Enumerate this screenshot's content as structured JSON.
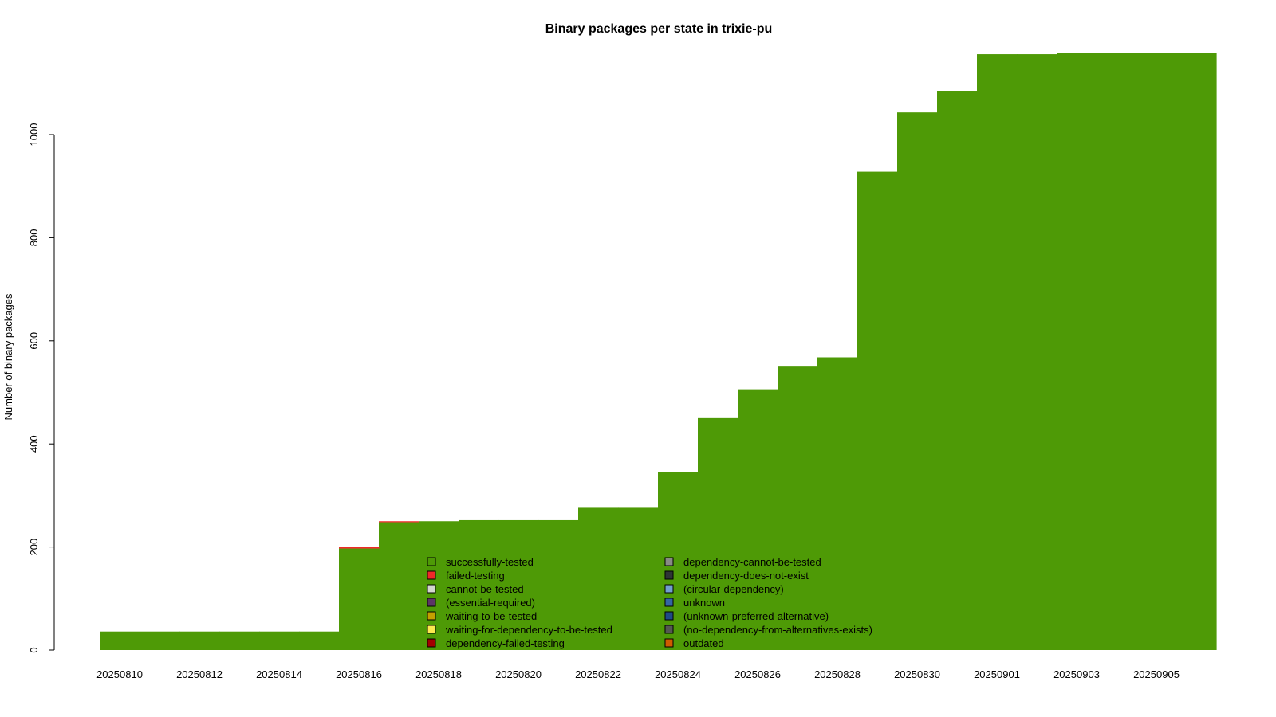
{
  "chart_data": {
    "type": "area",
    "title": "Binary packages per state in trixie-pu",
    "xlabel": "",
    "ylabel": "Number of binary packages",
    "ylim": [
      0,
      1160
    ],
    "yticks": [
      0,
      200,
      400,
      600,
      800,
      1000
    ],
    "xtick_labels": [
      "20250810",
      "20250812",
      "20250814",
      "20250816",
      "20250818",
      "20250820",
      "20250822",
      "20250824",
      "20250826",
      "20250828",
      "20250830",
      "20250901",
      "20250903",
      "20250905"
    ],
    "grid": false,
    "legend_position": "bottom-center",
    "x": [
      "20250810",
      "20250811",
      "20250812",
      "20250813",
      "20250814",
      "20250815",
      "20250816",
      "20250817",
      "20250818",
      "20250819",
      "20250820",
      "20250821",
      "20250822",
      "20250823",
      "20250824",
      "20250825",
      "20250826",
      "20250827",
      "20250828",
      "20250829",
      "20250830",
      "20250831",
      "20250901",
      "20250902",
      "20250903",
      "20250904",
      "20250905",
      "20250906"
    ],
    "series": [
      {
        "name": "successfully-tested",
        "color": "#4e9a06",
        "values": [
          36,
          36,
          36,
          36,
          36,
          36,
          197,
          248,
          250,
          252,
          252,
          252,
          276,
          276,
          345,
          450,
          506,
          550,
          568,
          928,
          1043,
          1085,
          1156,
          1156,
          1158,
          1158,
          1158,
          1158
        ]
      },
      {
        "name": "failed-testing",
        "color": "#ef2929",
        "values": [
          0,
          0,
          0,
          0,
          0,
          0,
          3,
          2,
          0,
          0,
          0,
          0,
          0,
          0,
          0,
          0,
          0,
          0,
          0,
          0,
          0,
          0,
          0,
          0,
          0,
          0,
          0,
          0
        ]
      },
      {
        "name": "cannot-be-tested",
        "color": "#d3d7cf",
        "values": [
          0,
          0,
          0,
          0,
          0,
          0,
          0,
          0,
          0,
          0,
          0,
          0,
          0,
          0,
          0,
          0,
          0,
          0,
          0,
          0,
          0,
          0,
          0,
          0,
          0,
          0,
          0,
          0
        ]
      },
      {
        "name": "(essential-required)",
        "color": "#5c3566",
        "values": [
          0,
          0,
          0,
          0,
          0,
          0,
          0,
          0,
          0,
          0,
          0,
          0,
          0,
          0,
          0,
          0,
          0,
          0,
          0,
          0,
          0,
          0,
          0,
          0,
          0,
          0,
          0,
          0
        ]
      },
      {
        "name": "waiting-to-be-tested",
        "color": "#c4a000",
        "values": [
          0,
          0,
          0,
          0,
          0,
          0,
          0,
          0,
          0,
          0,
          0,
          0,
          0,
          0,
          0,
          0,
          0,
          0,
          0,
          0,
          0,
          0,
          0,
          0,
          0,
          0,
          0,
          0
        ]
      },
      {
        "name": "waiting-for-dependency-to-be-tested",
        "color": "#fce94f",
        "values": [
          0,
          0,
          0,
          0,
          0,
          0,
          0,
          0,
          0,
          0,
          0,
          0,
          0,
          0,
          0,
          0,
          0,
          0,
          0,
          0,
          0,
          0,
          0,
          0,
          0,
          0,
          0,
          0
        ]
      },
      {
        "name": "dependency-failed-testing",
        "color": "#a40000",
        "values": [
          0,
          0,
          0,
          0,
          0,
          0,
          0,
          0,
          0,
          0,
          0,
          0,
          0,
          0,
          0,
          0,
          0,
          0,
          0,
          0,
          0,
          0,
          0,
          0,
          0,
          0,
          0,
          0
        ]
      },
      {
        "name": "dependency-cannot-be-tested",
        "color": "#888a85",
        "values": [
          0,
          0,
          0,
          0,
          0,
          0,
          0,
          0,
          0,
          0,
          0,
          0,
          0,
          0,
          0,
          0,
          0,
          0,
          0,
          0,
          0,
          0,
          0,
          0,
          0,
          0,
          0,
          0
        ]
      },
      {
        "name": "dependency-does-not-exist",
        "color": "#2e3436",
        "values": [
          0,
          0,
          0,
          0,
          0,
          0,
          0,
          0,
          0,
          0,
          0,
          0,
          0,
          0,
          0,
          0,
          0,
          0,
          0,
          0,
          0,
          0,
          0,
          0,
          0,
          0,
          0,
          0
        ]
      },
      {
        "name": "(circular-dependency)",
        "color": "#729fcf",
        "values": [
          0,
          0,
          0,
          0,
          0,
          0,
          0,
          0,
          0,
          0,
          0,
          0,
          0,
          0,
          0,
          0,
          0,
          0,
          0,
          0,
          0,
          0,
          0,
          0,
          0,
          0,
          0,
          0
        ]
      },
      {
        "name": "unknown",
        "color": "#3465a4",
        "values": [
          0,
          0,
          0,
          0,
          0,
          0,
          0,
          0,
          0,
          0,
          0,
          0,
          0,
          0,
          0,
          0,
          0,
          0,
          0,
          0,
          0,
          0,
          0,
          0,
          0,
          0,
          0,
          0
        ]
      },
      {
        "name": "(unknown-preferred-alternative)",
        "color": "#204a87",
        "values": [
          0,
          0,
          0,
          0,
          0,
          0,
          0,
          0,
          0,
          0,
          0,
          0,
          0,
          0,
          0,
          0,
          0,
          0,
          0,
          0,
          0,
          0,
          0,
          0,
          0,
          0,
          0,
          0
        ]
      },
      {
        "name": "(no-dependency-from-alternatives-exists)",
        "color": "#555753",
        "values": [
          0,
          0,
          0,
          0,
          0,
          0,
          0,
          0,
          0,
          0,
          0,
          0,
          0,
          0,
          0,
          0,
          0,
          0,
          0,
          0,
          0,
          0,
          0,
          0,
          0,
          0,
          0,
          0
        ]
      },
      {
        "name": "outdated",
        "color": "#ce5c00",
        "values": [
          0,
          0,
          0,
          0,
          0,
          0,
          0,
          0,
          0,
          0,
          0,
          0,
          0,
          0,
          0,
          0,
          0,
          0,
          0,
          0,
          0,
          0,
          0,
          0,
          0,
          0,
          0,
          0
        ]
      }
    ]
  }
}
